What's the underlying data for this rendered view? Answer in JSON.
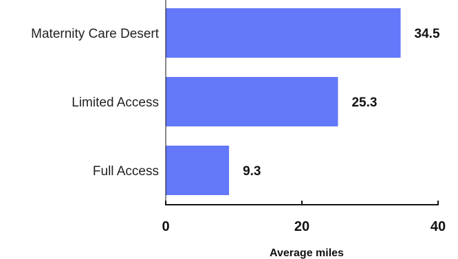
{
  "chart_data": {
    "type": "bar",
    "orientation": "horizontal",
    "categories": [
      "Maternity Care Desert",
      "Limited Access",
      "Full Access"
    ],
    "values": [
      34.5,
      25.3,
      9.3
    ],
    "data_labels": [
      "34.5",
      "25.3",
      "9.3"
    ],
    "title": "",
    "xlabel": "Average miles",
    "ylabel": "",
    "xlim": [
      0,
      40
    ],
    "xticks": [
      0,
      20,
      40
    ],
    "tick_labels": [
      "0",
      "20",
      "40"
    ],
    "grid": false,
    "legend": "none",
    "bar_color": "#6478FA",
    "axis_color": "#111111"
  }
}
